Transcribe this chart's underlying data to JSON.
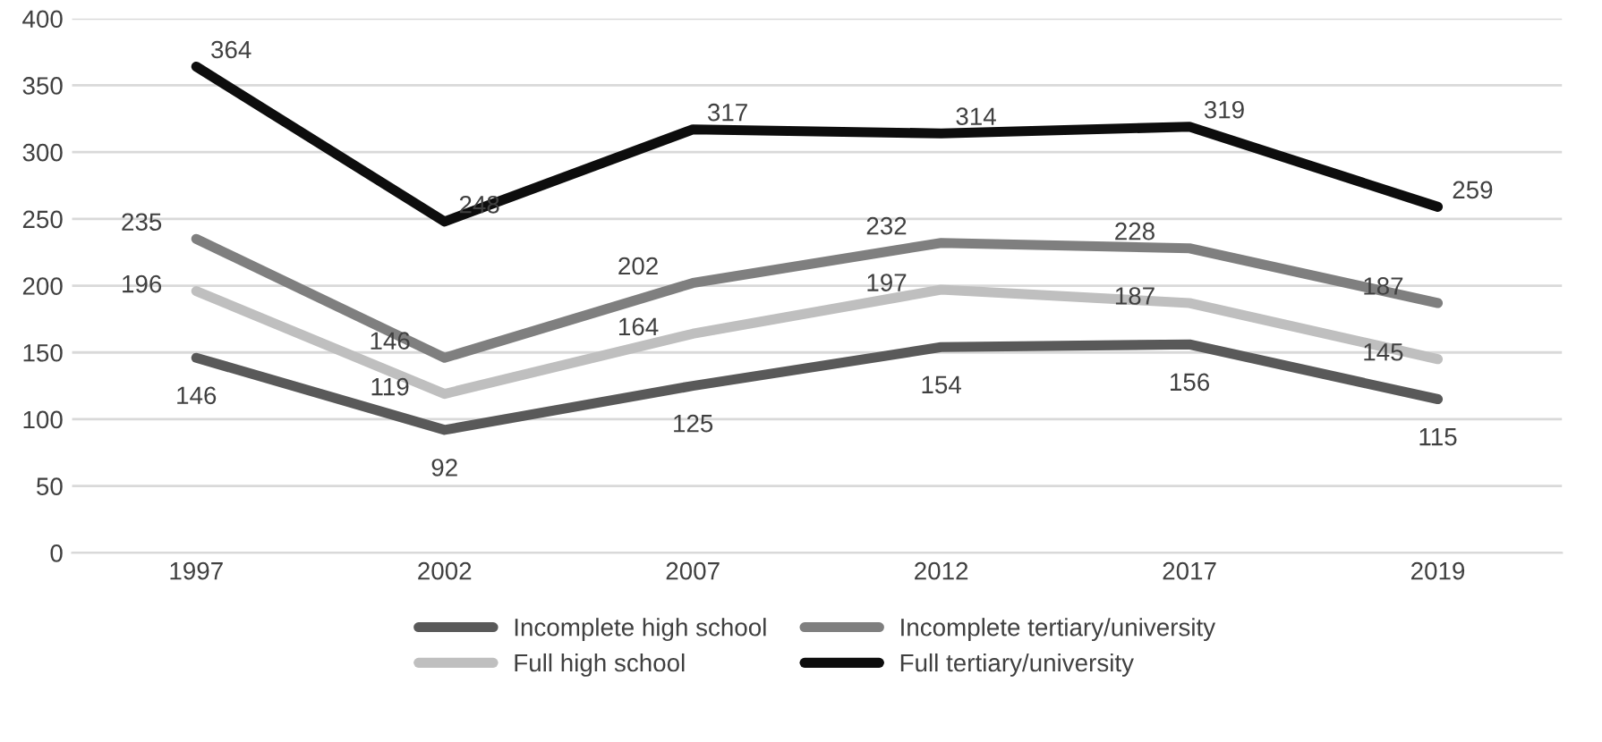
{
  "chart_data": {
    "type": "line",
    "categories": [
      "1997",
      "2002",
      "2007",
      "2012",
      "2017",
      "2019"
    ],
    "series": [
      {
        "name": "Incomplete high school",
        "color": "#595959",
        "values": [
          146,
          92,
          125,
          154,
          156,
          115
        ]
      },
      {
        "name": "Full high school",
        "color": "#bfbfbf",
        "values": [
          196,
          119,
          164,
          197,
          187,
          145
        ]
      },
      {
        "name": "Incomplete tertiary/university",
        "color": "#7f7f7f",
        "values": [
          235,
          146,
          202,
          232,
          228,
          187
        ]
      },
      {
        "name": "Full tertiary/university",
        "color": "#0d0d0d",
        "values": [
          364,
          248,
          317,
          314,
          319,
          259
        ]
      }
    ],
    "ylim": [
      0,
      400
    ],
    "yticks": [
      0,
      50,
      100,
      150,
      200,
      250,
      300,
      350,
      400
    ],
    "grid": "y",
    "legend": "bottom",
    "data_labels": true,
    "marker": "none",
    "line_style": "solid"
  }
}
